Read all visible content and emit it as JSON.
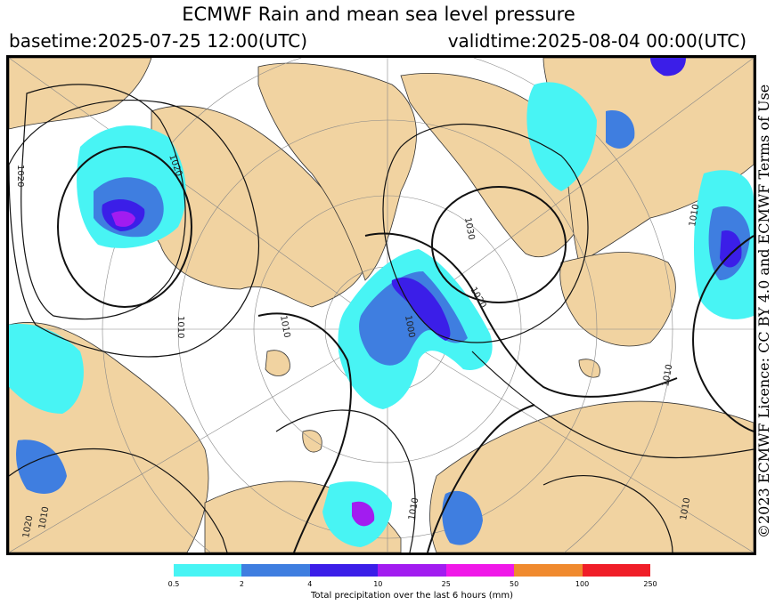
{
  "header": {
    "title": "ECMWF Rain and mean sea level pressure",
    "basetime": "basetime:2025-07-25 12:00(UTC)",
    "validtime": "validtime:2025-08-04 00:00(UTC)"
  },
  "license": "©2023 ECMWF Licence: CC BY 4.0 and ECMWF Terms of Use",
  "map": {
    "isobar_labels": [
      "1020",
      "1020",
      "1030",
      "1020",
      "1010",
      "1010",
      "1010",
      "1000",
      "1010",
      "1010",
      "1020",
      "1010",
      "1010"
    ],
    "colors": {
      "land": "#f1d3a1",
      "ocean": "#ffffff"
    }
  },
  "legend": {
    "label": "Total precipitation over the last 6 hours (mm)",
    "ticks": [
      "0.5",
      "2",
      "4",
      "10",
      "25",
      "50",
      "100",
      "250"
    ],
    "colors": [
      "#48f4f4",
      "#3f7ee0",
      "#3b1ee8",
      "#a21cf0",
      "#f018e8",
      "#f08a2e",
      "#f01e28"
    ]
  }
}
